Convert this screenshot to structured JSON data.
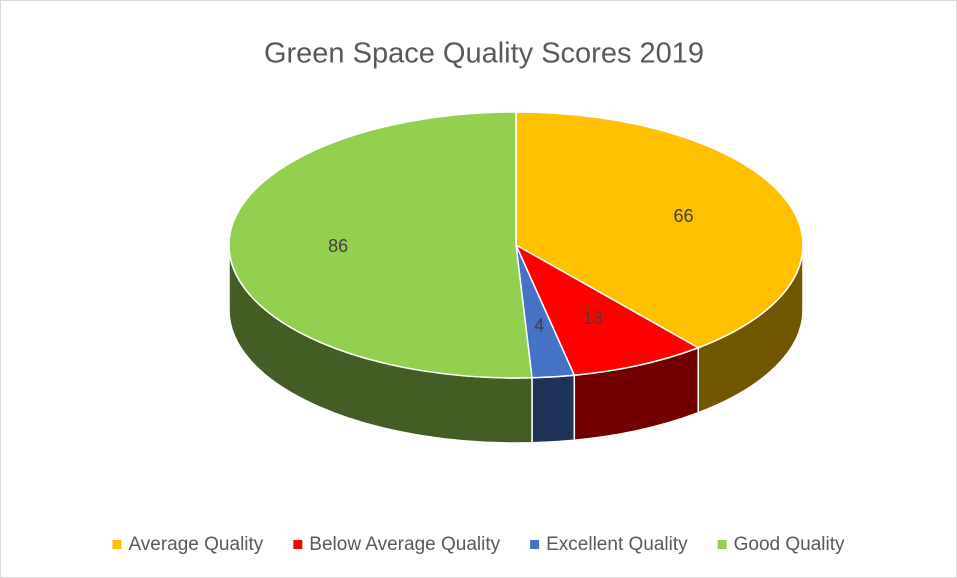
{
  "chart_data": {
    "type": "pie",
    "title": "Green Space Quality Scores 2019",
    "categories": [
      "Average Quality",
      "Below Average Quality",
      "Excellent Quality",
      "Good Quality"
    ],
    "values": [
      66,
      13,
      4,
      86
    ],
    "colors": [
      "#ffc000",
      "#ff0000",
      "#4472c4",
      "#92d050"
    ],
    "legend": "bottom"
  }
}
